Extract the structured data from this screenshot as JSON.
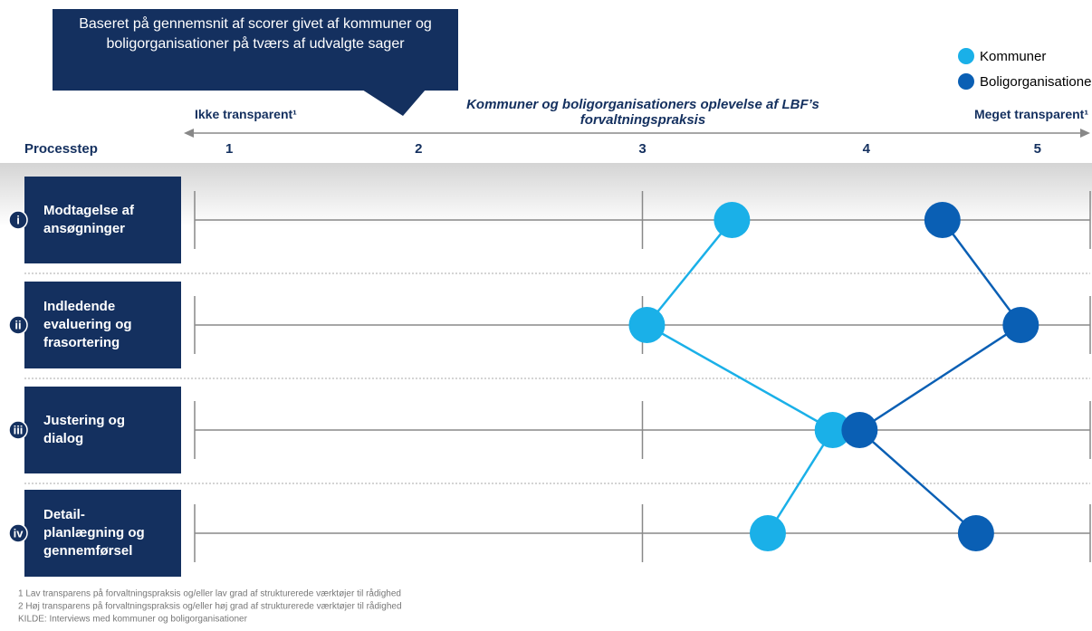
{
  "chart_data": {
    "type": "dot-line",
    "callout": "Baseret på gennemsnit af scorer givet af kommuner og boligorganisationer på tværs af udvalgte sager",
    "title": "Kommuner og boligorganisationers oplevelse af LBF’s forvaltningspraksis",
    "axis_left_label": "Ikke transparent¹",
    "axis_right_label": "Meget transparent¹",
    "row_header": "Processtep",
    "row_numbers": [
      "i",
      "ii",
      "iii",
      "iv"
    ],
    "categories": [
      "Modtagelse af\nansøgninger",
      "Indledende\nevaluering og\nfrasortering",
      "Justering og\ndialog",
      "Detail-\nplanlægning og\ngennemførsel"
    ],
    "xlim": [
      1,
      5
    ],
    "xticks": [
      1,
      2,
      3,
      4,
      5
    ],
    "xgrid": [
      1,
      3,
      5
    ],
    "legend": "top-right",
    "series": [
      {
        "name": "Kommuner",
        "color": "#1ab0e8",
        "values": [
          3.4,
          3.02,
          3.85,
          3.56
        ]
      },
      {
        "name": "Boligorganisationer",
        "color": "#0a5fb4",
        "values": [
          4.34,
          4.69,
          3.97,
          4.49
        ]
      }
    ],
    "footnotes": [
      "1 Lav transparens på forvaltningspraksis og/eller lav grad af strukturerede værktøjer til rådighed",
      "2 Høj transparens på forvaltningspraksis og/eller høj grad af strukturerede værktøjer til rådighed",
      "KILDE: Interviews med kommuner og boligorganisationer"
    ]
  }
}
